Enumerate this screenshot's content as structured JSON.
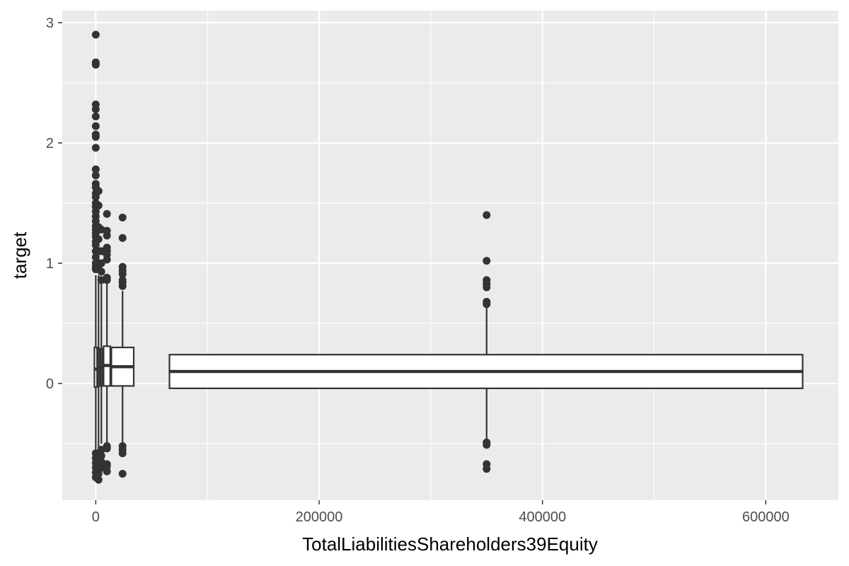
{
  "chart_data": {
    "type": "boxplot",
    "xlabel": "TotalLiabilitiesShareholders39Equity",
    "ylabel": "target",
    "xlim": [
      -30000,
      665000
    ],
    "ylim": [
      -0.97,
      3.1
    ],
    "x_ticks": [
      0,
      200000,
      400000,
      600000
    ],
    "x_tick_labels": [
      "0",
      "200000",
      "400000",
      "600000"
    ],
    "y_ticks": [
      0,
      1,
      2,
      3
    ],
    "y_tick_labels": [
      "0",
      "1",
      "2",
      "3"
    ],
    "grid": true,
    "boxes": [
      {
        "x_center": 0,
        "x_min": -1200,
        "x_max": 1200,
        "q1": -0.03,
        "median": 0.12,
        "q3": 0.3,
        "whisker_low": -0.55,
        "whisker_high": 0.9,
        "outliers": [
          2.9,
          2.67,
          2.66,
          2.65,
          2.32,
          2.28,
          2.22,
          2.14,
          2.07,
          2.05,
          1.96,
          1.78,
          1.73,
          1.66,
          1.63,
          1.58,
          1.55,
          1.5,
          1.47,
          1.43,
          1.39,
          1.35,
          1.31,
          1.28,
          1.25,
          1.22,
          1.18,
          1.15,
          1.1,
          1.05,
          1.0,
          0.97,
          0.95,
          -0.58,
          -0.62,
          -0.66,
          -0.7,
          -0.74,
          -0.78
        ]
      },
      {
        "x_center": 2500,
        "x_min": 1800,
        "x_max": 3200,
        "q1": -0.02,
        "median": 0.13,
        "q3": 0.29,
        "whisker_low": -0.55,
        "whisker_high": 0.9,
        "outliers": [
          1.6,
          1.48,
          1.3,
          1.2,
          1.1,
          1.0,
          0.95,
          -0.6,
          -0.68,
          -0.75,
          -0.8
        ]
      },
      {
        "x_center": 5000,
        "x_min": 4300,
        "x_max": 5700,
        "q1": -0.02,
        "median": 0.13,
        "q3": 0.29,
        "whisker_low": -0.5,
        "whisker_high": 0.85,
        "outliers": [
          1.28,
          1.1,
          1.0,
          0.93,
          0.86,
          -0.55,
          -0.6,
          -0.65,
          -0.7
        ]
      },
      {
        "x_center": 10000,
        "x_min": 7000,
        "x_max": 13000,
        "q1": -0.02,
        "median": 0.15,
        "q3": 0.31,
        "whisker_low": -0.5,
        "whisker_high": 0.84,
        "outliers": [
          1.41,
          1.27,
          1.23,
          1.13,
          1.1,
          1.07,
          1.03,
          0.88,
          0.86,
          -0.52,
          -0.54,
          -0.67,
          -0.69,
          -0.73
        ]
      },
      {
        "x_center": 24000,
        "x_min": 14000,
        "x_max": 34000,
        "q1": -0.02,
        "median": 0.14,
        "q3": 0.3,
        "whisker_low": -0.5,
        "whisker_high": 0.77,
        "outliers": [
          1.38,
          1.21,
          0.97,
          0.94,
          0.91,
          0.86,
          0.84,
          0.81,
          -0.52,
          -0.55,
          -0.58,
          -0.75
        ]
      },
      {
        "x_center": 350000,
        "x_min": 66000,
        "x_max": 633000,
        "q1": -0.04,
        "median": 0.1,
        "q3": 0.24,
        "whisker_low": -0.5,
        "whisker_high": 0.66,
        "outliers": [
          1.4,
          1.02,
          0.86,
          0.83,
          0.8,
          0.68,
          0.66,
          -0.49,
          -0.51,
          -0.67,
          -0.71
        ]
      }
    ]
  }
}
